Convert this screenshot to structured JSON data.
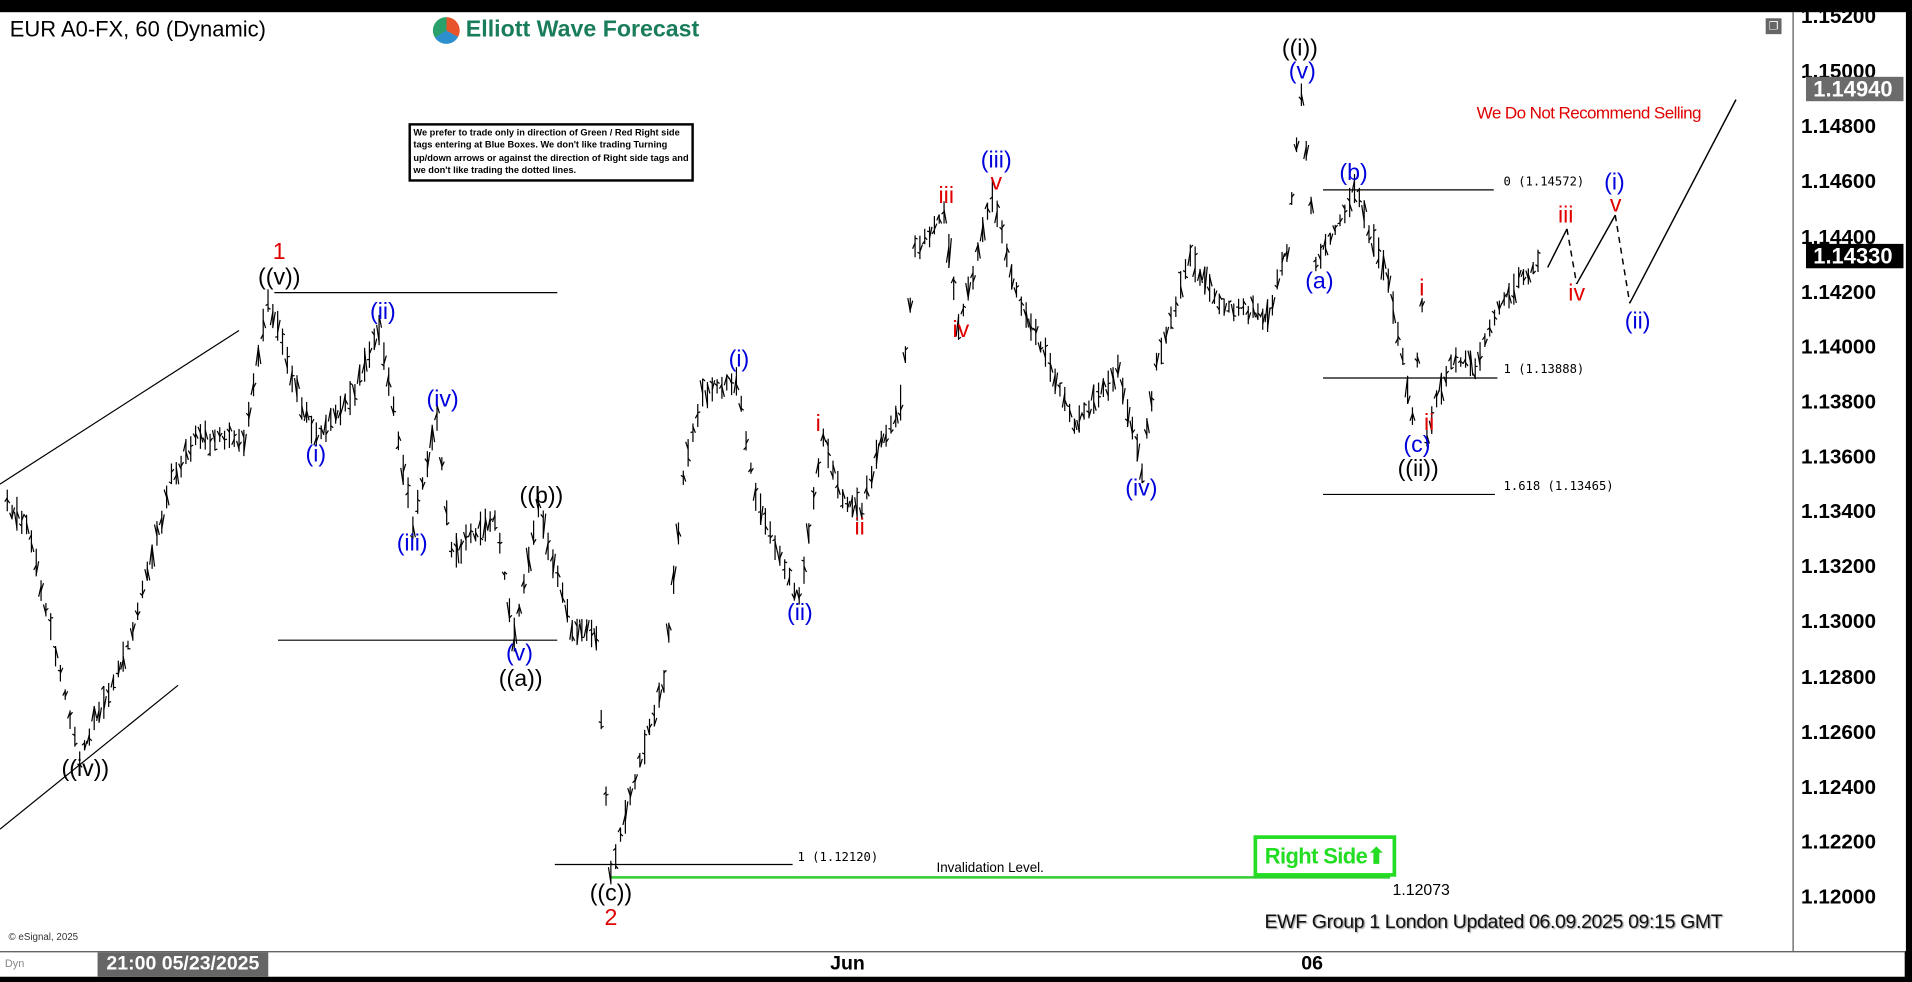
{
  "header": {
    "symbol_title": "EUR A0-FX, 60 (Dynamic)",
    "logo_text": "Elliott Wave Forecast",
    "restore_icon": "window-restore-icon"
  },
  "disclaimer": "We prefer to trade only in direction of Green / Red Right side tags entering at Blue Boxes. We don't like trading Turning up/down arrows or against the direction of Right side tags and we don't like trading the dotted lines.",
  "recommendation": "We Do Not Recommend Selling",
  "right_side_tag": {
    "label": "Right Side",
    "arrow": "⬆",
    "color": "#22dd22"
  },
  "footer": {
    "updated": "EWF Group 1 London Updated 06.09.2025 09:15 GMT",
    "copyright": "© eSignal, 2025",
    "dyn_label": "Dyn"
  },
  "colors": {
    "wave_red": "#e00000",
    "wave_blue": "#0000dd",
    "wave_black": "#000000",
    "invalidation": "#33cc33",
    "last_price_tag": "#000000",
    "high_tag": "#6b6b6b"
  },
  "chart_data": {
    "type": "ohlc-bar",
    "symbol": "EUR A0-FX",
    "interval": "60",
    "price_axis": {
      "ticks": [
        "1.15200",
        "1.15000",
        "1.14800",
        "1.14600",
        "1.14400",
        "1.14200",
        "1.14000",
        "1.13800",
        "1.13600",
        "1.13400",
        "1.13200",
        "1.13000",
        "1.12800",
        "1.12600",
        "1.12400",
        "1.12200",
        "1.12000"
      ],
      "range": [
        1.1188,
        1.1525
      ]
    },
    "time_axis": {
      "current_label": "21:00 05/23/2025",
      "labels": [
        "Jun",
        "06"
      ]
    },
    "price_tags": {
      "high": "1.14940",
      "last": "1.14330"
    },
    "price_path": [
      [
        "2025-05-21 18:00",
        1.1342
      ],
      [
        "2025-05-21 22:00",
        1.1336
      ],
      [
        "2025-05-22 09:00",
        1.1251
      ],
      [
        "2025-05-22 20:00",
        1.1296
      ],
      [
        "2025-05-23 04:00",
        1.1353
      ],
      [
        "2025-05-23 09:00",
        1.1367
      ],
      [
        "2025-05-23 19:00",
        1.1367
      ],
      [
        "2025-05-26 00:00",
        1.1418
      ],
      [
        "2025-05-26 06:00",
        1.1384
      ],
      [
        "2025-05-26 10:00",
        1.1367
      ],
      [
        "2025-05-26 18:00",
        1.1384
      ],
      [
        "2025-05-26 23:00",
        1.1407
      ],
      [
        "2025-05-27 06:00",
        1.1336
      ],
      [
        "2025-05-27 11:00",
        1.1373
      ],
      [
        "2025-05-27 14:00",
        1.1325
      ],
      [
        "2025-05-27 23:00",
        1.1338
      ],
      [
        "2025-05-28 03:00",
        1.1296
      ],
      [
        "2025-05-28 08:00",
        1.1341
      ],
      [
        "2025-05-28 15:00",
        1.1298
      ],
      [
        "2025-05-28 20:00",
        1.1296
      ],
      [
        "2025-05-28 23:00",
        1.1208
      ],
      [
        "2025-05-29 04:00",
        1.1243
      ],
      [
        "2025-05-29 10:00",
        1.1278
      ],
      [
        "2025-05-29 14:00",
        1.1353
      ],
      [
        "2025-05-29 18:00",
        1.1382
      ],
      [
        "2025-05-30 01:00",
        1.1389
      ],
      [
        "2025-05-30 05:00",
        1.1345
      ],
      [
        "2025-05-30 14:00",
        1.1309
      ],
      [
        "2025-05-30 19:00",
        1.1367
      ],
      [
        "2025-06-01 23:00",
        1.1345
      ],
      [
        "2025-06-02 03:00",
        1.1342
      ],
      [
        "2025-06-02 06:00",
        1.1362
      ],
      [
        "2025-06-02 11:00",
        1.138
      ],
      [
        "2025-06-02 14:00",
        1.1435
      ],
      [
        "2025-06-02 20:00",
        1.1449
      ],
      [
        "2025-06-02 23:00",
        1.1407
      ],
      [
        "2025-06-03 06:00",
        1.1455
      ],
      [
        "2025-06-03 10:00",
        1.1424
      ],
      [
        "2025-06-03 18:00",
        1.1393
      ],
      [
        "2025-06-03 23:00",
        1.1371
      ],
      [
        "2025-06-04 08:00",
        1.1391
      ],
      [
        "2025-06-04 13:00",
        1.1356
      ],
      [
        "2025-06-04 16:00",
        1.1393
      ],
      [
        "2025-06-04 23:00",
        1.1433
      ],
      [
        "2025-06-05 05:00",
        1.1415
      ],
      [
        "2025-06-05 15:00",
        1.1411
      ],
      [
        "2025-06-05 19:00",
        1.1435
      ],
      [
        "2025-06-05 22:00",
        1.1494
      ],
      [
        "2025-06-06 01:00",
        1.1429
      ],
      [
        "2025-06-06 09:00",
        1.1457
      ],
      [
        "2025-06-06 16:00",
        1.1424
      ],
      [
        "2025-06-08 21:00",
        1.1376
      ],
      [
        "2025-06-08 23:00",
        1.1415
      ],
      [
        "2025-06-09 00:00",
        1.1369
      ],
      [
        "2025-06-09 05:00",
        1.1396
      ],
      [
        "2025-06-09 10:00",
        1.1393
      ],
      [
        "2025-06-09 15:00",
        1.1415
      ],
      [
        "2025-06-10 00:00",
        1.1433
      ]
    ],
    "projection": [
      {
        "from": [
          "2025-06-10 01:00",
          1.1429
        ],
        "to": [
          "2025-06-10 05:00",
          1.1443
        ],
        "style": "solid"
      },
      {
        "from": [
          "2025-06-10 05:00",
          1.1443
        ],
        "to": [
          "2025-06-10 07:00",
          1.1423
        ],
        "style": "dashed"
      },
      {
        "from": [
          "2025-06-10 07:00",
          1.1423
        ],
        "to": [
          "2025-06-10 15:00",
          1.1448
        ],
        "style": "solid"
      },
      {
        "from": [
          "2025-06-10 15:00",
          1.1448
        ],
        "to": [
          "2025-06-10 18:00",
          1.1416
        ],
        "style": "dashed"
      },
      {
        "from": [
          "2025-06-10 18:00",
          1.1416
        ],
        "to": [
          "2025-06-11 16:00",
          1.149
        ],
        "style": "solid"
      }
    ],
    "levels": [
      {
        "label": "0 (1.14572)",
        "price": 1.14572
      },
      {
        "label": "1 (1.13888)",
        "price": 1.13888
      },
      {
        "label": "1.618 (1.13465)",
        "price": 1.13465
      },
      {
        "label": "1 (1.12120)",
        "price": 1.1212
      },
      {
        "label": "Invalidation Level.",
        "value_label": "1.12073",
        "price": 1.12073
      }
    ],
    "wave_labels": [
      {
        "text": "1",
        "color": "red"
      },
      {
        "text": "((v))",
        "color": "black"
      },
      {
        "text": "(ii)",
        "color": "blue"
      },
      {
        "text": "(i)",
        "color": "blue"
      },
      {
        "text": "(iv)",
        "color": "blue"
      },
      {
        "text": "(iii)",
        "color": "blue"
      },
      {
        "text": "((b))",
        "color": "black"
      },
      {
        "text": "(v)",
        "color": "blue"
      },
      {
        "text": "((a))",
        "color": "black"
      },
      {
        "text": "((iv))",
        "color": "black"
      },
      {
        "text": "((c))",
        "color": "black"
      },
      {
        "text": "2",
        "color": "red"
      },
      {
        "text": "(i)",
        "color": "blue"
      },
      {
        "text": "(ii)",
        "color": "blue"
      },
      {
        "text": "i",
        "color": "red"
      },
      {
        "text": "ii",
        "color": "red"
      },
      {
        "text": "iii",
        "color": "red"
      },
      {
        "text": "iv",
        "color": "red"
      },
      {
        "text": "v",
        "color": "red"
      },
      {
        "text": "(iii)",
        "color": "blue"
      },
      {
        "text": "(iv)",
        "color": "blue"
      },
      {
        "text": "((i))",
        "color": "black"
      },
      {
        "text": "(v)",
        "color": "blue"
      },
      {
        "text": "(a)",
        "color": "blue"
      },
      {
        "text": "(b)",
        "color": "blue"
      },
      {
        "text": "i",
        "color": "red"
      },
      {
        "text": "ii",
        "color": "red"
      },
      {
        "text": "(c)",
        "color": "blue"
      },
      {
        "text": "((ii))",
        "color": "black"
      },
      {
        "text": "iii",
        "color": "red"
      },
      {
        "text": "(i)",
        "color": "blue"
      },
      {
        "text": "v",
        "color": "red"
      },
      {
        "text": "iv",
        "color": "red"
      },
      {
        "text": "(ii)",
        "color": "blue"
      }
    ]
  }
}
